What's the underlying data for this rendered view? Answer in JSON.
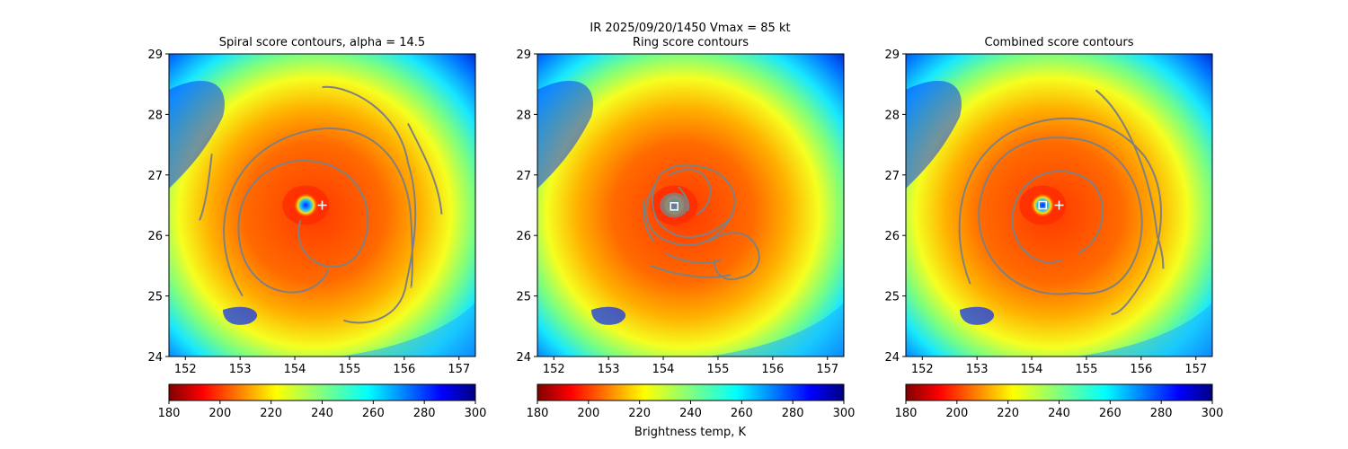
{
  "suptitle": "IR  2025/09/20/1450    Vmax = 85 kt",
  "colorbar": {
    "label": "Brightness temp, K",
    "ticks": [
      180,
      200,
      220,
      240,
      260,
      280,
      300
    ],
    "range": [
      180,
      300
    ],
    "colormap": "jet_r"
  },
  "chart_data": [
    {
      "type": "heatmap",
      "title": "Spiral score contours, alpha = 14.5",
      "xlabel": "",
      "ylabel": "",
      "xlim": [
        151.7,
        157.3
      ],
      "ylim": [
        24,
        29
      ],
      "xticks": [
        152,
        153,
        154,
        155,
        156,
        157
      ],
      "yticks": [
        24,
        25,
        26,
        27,
        28,
        29
      ],
      "variable": "Brightness temp, K",
      "eye_center": [
        154.2,
        26.5
      ],
      "markers": [
        {
          "symbol": "+",
          "color": "#ffffff",
          "x": 154.5,
          "y": 26.5
        }
      ],
      "contour_color": "#808080",
      "contour_kind": "spiral"
    },
    {
      "type": "heatmap",
      "title": "Ring score contours",
      "xlabel": "",
      "ylabel": "",
      "xlim": [
        151.7,
        157.3
      ],
      "ylim": [
        24,
        29
      ],
      "xticks": [
        152,
        153,
        154,
        155,
        156,
        157
      ],
      "yticks": [
        24,
        25,
        26,
        27,
        28,
        29
      ],
      "variable": "Brightness temp, K",
      "eye_center": [
        154.2,
        26.5
      ],
      "markers": [
        {
          "symbol": "square",
          "color": "#ffffff",
          "x": 154.2,
          "y": 26.48
        }
      ],
      "contour_color": "#808080",
      "contour_kind": "ring"
    },
    {
      "type": "heatmap",
      "title": "Combined score contours",
      "xlabel": "",
      "ylabel": "",
      "xlim": [
        151.7,
        157.3
      ],
      "ylim": [
        24,
        29
      ],
      "xticks": [
        152,
        153,
        154,
        155,
        156,
        157
      ],
      "yticks": [
        24,
        25,
        26,
        27,
        28,
        29
      ],
      "variable": "Brightness temp, K",
      "eye_center": [
        154.2,
        26.5
      ],
      "markers": [
        {
          "symbol": "+",
          "color": "#ffffff",
          "x": 154.5,
          "y": 26.5
        },
        {
          "symbol": "square",
          "color": "#ffffff",
          "x": 154.2,
          "y": 26.5
        }
      ],
      "contour_color": "#808080",
      "contour_kind": "spiral"
    }
  ]
}
